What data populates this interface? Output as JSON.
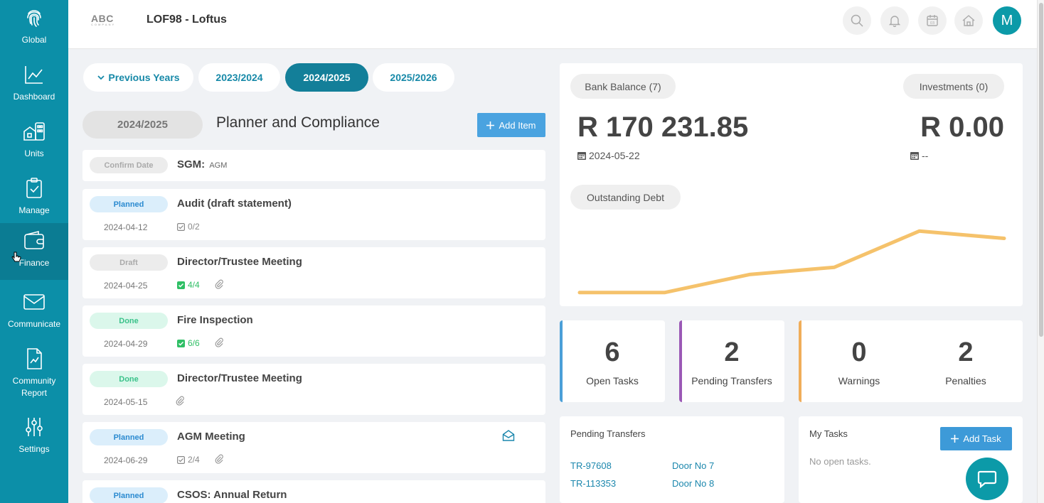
{
  "sidebar": {
    "items": [
      {
        "label": "Global",
        "icon": "fingerprint-icon"
      },
      {
        "label": "Dashboard",
        "icon": "line-chart-icon"
      },
      {
        "label": "Units",
        "icon": "building-icon"
      },
      {
        "label": "Manage",
        "icon": "clipboard-check-icon"
      },
      {
        "label": "Finance",
        "icon": "wallet-icon",
        "active": true
      },
      {
        "label": "Communicate",
        "icon": "envelope-icon"
      },
      {
        "label": "Community Report",
        "icon": "report-icon"
      },
      {
        "label": "Settings",
        "icon": "sliders-icon"
      }
    ]
  },
  "header": {
    "logo_text": "ABC",
    "logo_subtext": "COMPANY",
    "title": "LOF98 - Loftus",
    "avatar_initial": "M"
  },
  "year_tabs": [
    {
      "label": "Previous Years",
      "icon": "chevron-down-icon"
    },
    {
      "label": "2023/2024"
    },
    {
      "label": "2024/2025",
      "active": true
    },
    {
      "label": "2025/2026"
    }
  ],
  "planner": {
    "year_pill": "2024/2025",
    "title": "Planner and Compliance",
    "add_item_label": "Add Item",
    "items": [
      {
        "status": "Confirm Date",
        "title": "SGM:",
        "subtitle": "AGM"
      },
      {
        "status": "Planned",
        "title": "Audit (draft statement)",
        "date": "2024-04-12",
        "checks": "0/2"
      },
      {
        "status": "Draft",
        "title": "Director/Trustee Meeting",
        "date": "2024-04-25",
        "checks": "4/4"
      },
      {
        "status": "Done",
        "title": "Fire Inspection",
        "date": "2024-04-29",
        "checks": "6/6"
      },
      {
        "status": "Done",
        "title": "Director/Trustee Meeting",
        "date": "2024-05-15"
      },
      {
        "status": "Planned",
        "title": "AGM Meeting",
        "date": "2024-06-29",
        "checks": "2/4"
      },
      {
        "status": "Planned",
        "title": "CSOS: Annual Return"
      }
    ]
  },
  "finance": {
    "bank_balance_label": "Bank Balance (7)",
    "bank_balance_amount": "R 170 231.85",
    "bank_balance_date": "2024-05-22",
    "investments_label": "Investments (0)",
    "investments_amount": "R 0.00",
    "investments_date": "--",
    "outstanding_debt_label": "Outstanding Debt",
    "line_color": "#f5c26b"
  },
  "chart_data": {
    "type": "line",
    "series": [
      {
        "values": [
          1,
          1,
          3.5,
          4.5,
          9.5,
          8.5
        ]
      }
    ],
    "ylim": [
      0,
      11
    ],
    "grid": false
  },
  "stats": [
    {
      "value": "6",
      "label": "Open Tasks",
      "color": "#4a9fd8"
    },
    {
      "value": "2",
      "label": "Pending Transfers",
      "color": "#9b59b6"
    },
    {
      "value": "0",
      "label": "Warnings",
      "color": "#f0ad5a"
    },
    {
      "value": "2",
      "label": "Penalties"
    }
  ],
  "pending_transfers": {
    "title": "Pending Transfers",
    "rows": [
      {
        "ref": "TR-97608",
        "door": "Door No 7"
      },
      {
        "ref": "TR-113353",
        "door": "Door No 8"
      }
    ]
  },
  "my_tasks": {
    "title": "My Tasks",
    "add_task_label": "Add Task",
    "empty_text": "No open tasks."
  }
}
